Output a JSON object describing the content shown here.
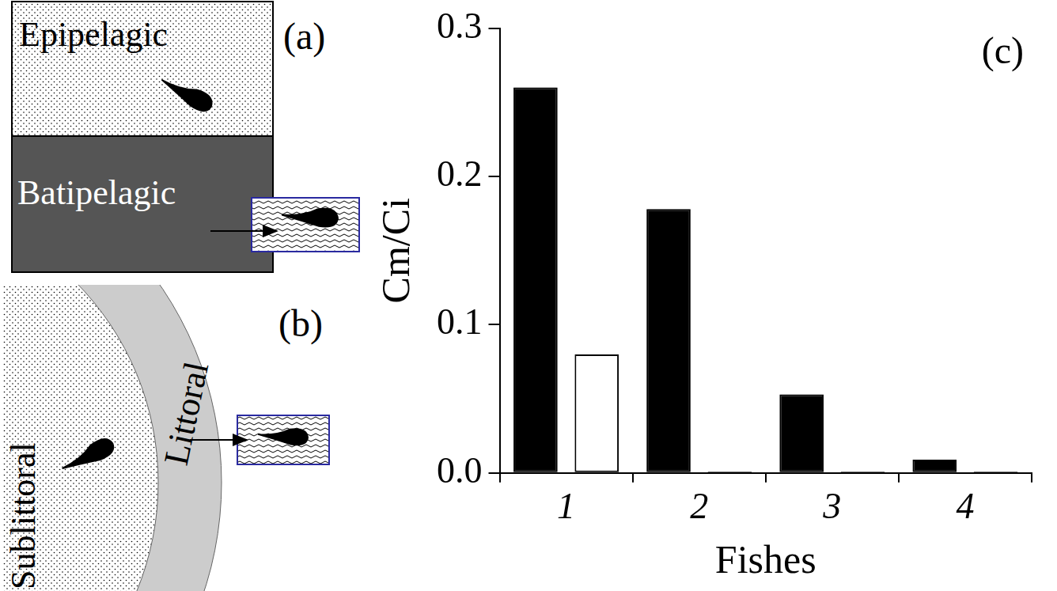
{
  "diagrams": {
    "a": {
      "label": "(a)",
      "zones": [
        "Epipelagic",
        "Batipelagic"
      ]
    },
    "b": {
      "label": "(b)",
      "zones": [
        "Sublittoral",
        "Littoral"
      ]
    }
  },
  "chart_data": {
    "type": "bar",
    "title": "(c)",
    "x_label": "Fishes",
    "y_label": "Cm/Ci",
    "categories": [
      "1",
      "2",
      "3",
      "4"
    ],
    "series": [
      {
        "color": "#000000",
        "values": [
          0.26,
          0.178,
          0.053,
          0.009
        ]
      },
      {
        "color": "#ffffff",
        "values": [
          0.08,
          0.001,
          0.001,
          0.001
        ]
      }
    ],
    "ylim": [
      0,
      0.3
    ],
    "yticks": [
      {
        "value": 0,
        "label": "0.0"
      },
      {
        "value": 0.1,
        "label": "0.1"
      },
      {
        "value": 0.2,
        "label": "0.2"
      },
      {
        "value": 0.3,
        "label": "0.3"
      }
    ],
    "grid": false
  }
}
